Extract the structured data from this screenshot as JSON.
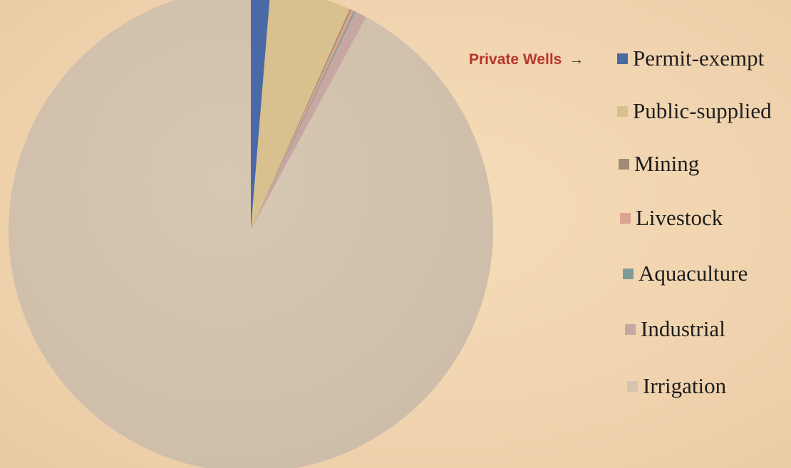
{
  "callout": {
    "label": "Private Wells",
    "arrow": "→"
  },
  "chart_data": {
    "type": "pie",
    "title": "",
    "start_angle_deg": 0,
    "direction": "clockwise",
    "slices": [
      {
        "label": "Permit-exempt",
        "value": 1.3,
        "color": "#4a6aa5"
      },
      {
        "label": "Public-supplied",
        "value": 5.4,
        "color": "#d9c18f"
      },
      {
        "label": "Mining",
        "value": 0.1,
        "color": "#a08c74"
      },
      {
        "label": "Livestock",
        "value": 0.2,
        "color": "#dba390"
      },
      {
        "label": "Aquaculture",
        "value": 0.1,
        "color": "#7e9a96"
      },
      {
        "label": "Industrial",
        "value": 0.8,
        "color": "#c7a7a2"
      },
      {
        "label": "Irrigation",
        "value": 92.1,
        "color": "#d4c4b0"
      }
    ],
    "legend": {
      "position": "right",
      "entries": [
        "Permit-exempt",
        "Public-supplied",
        "Mining",
        "Livestock",
        "Aquaculture",
        "Industrial",
        "Irrigation"
      ]
    }
  }
}
